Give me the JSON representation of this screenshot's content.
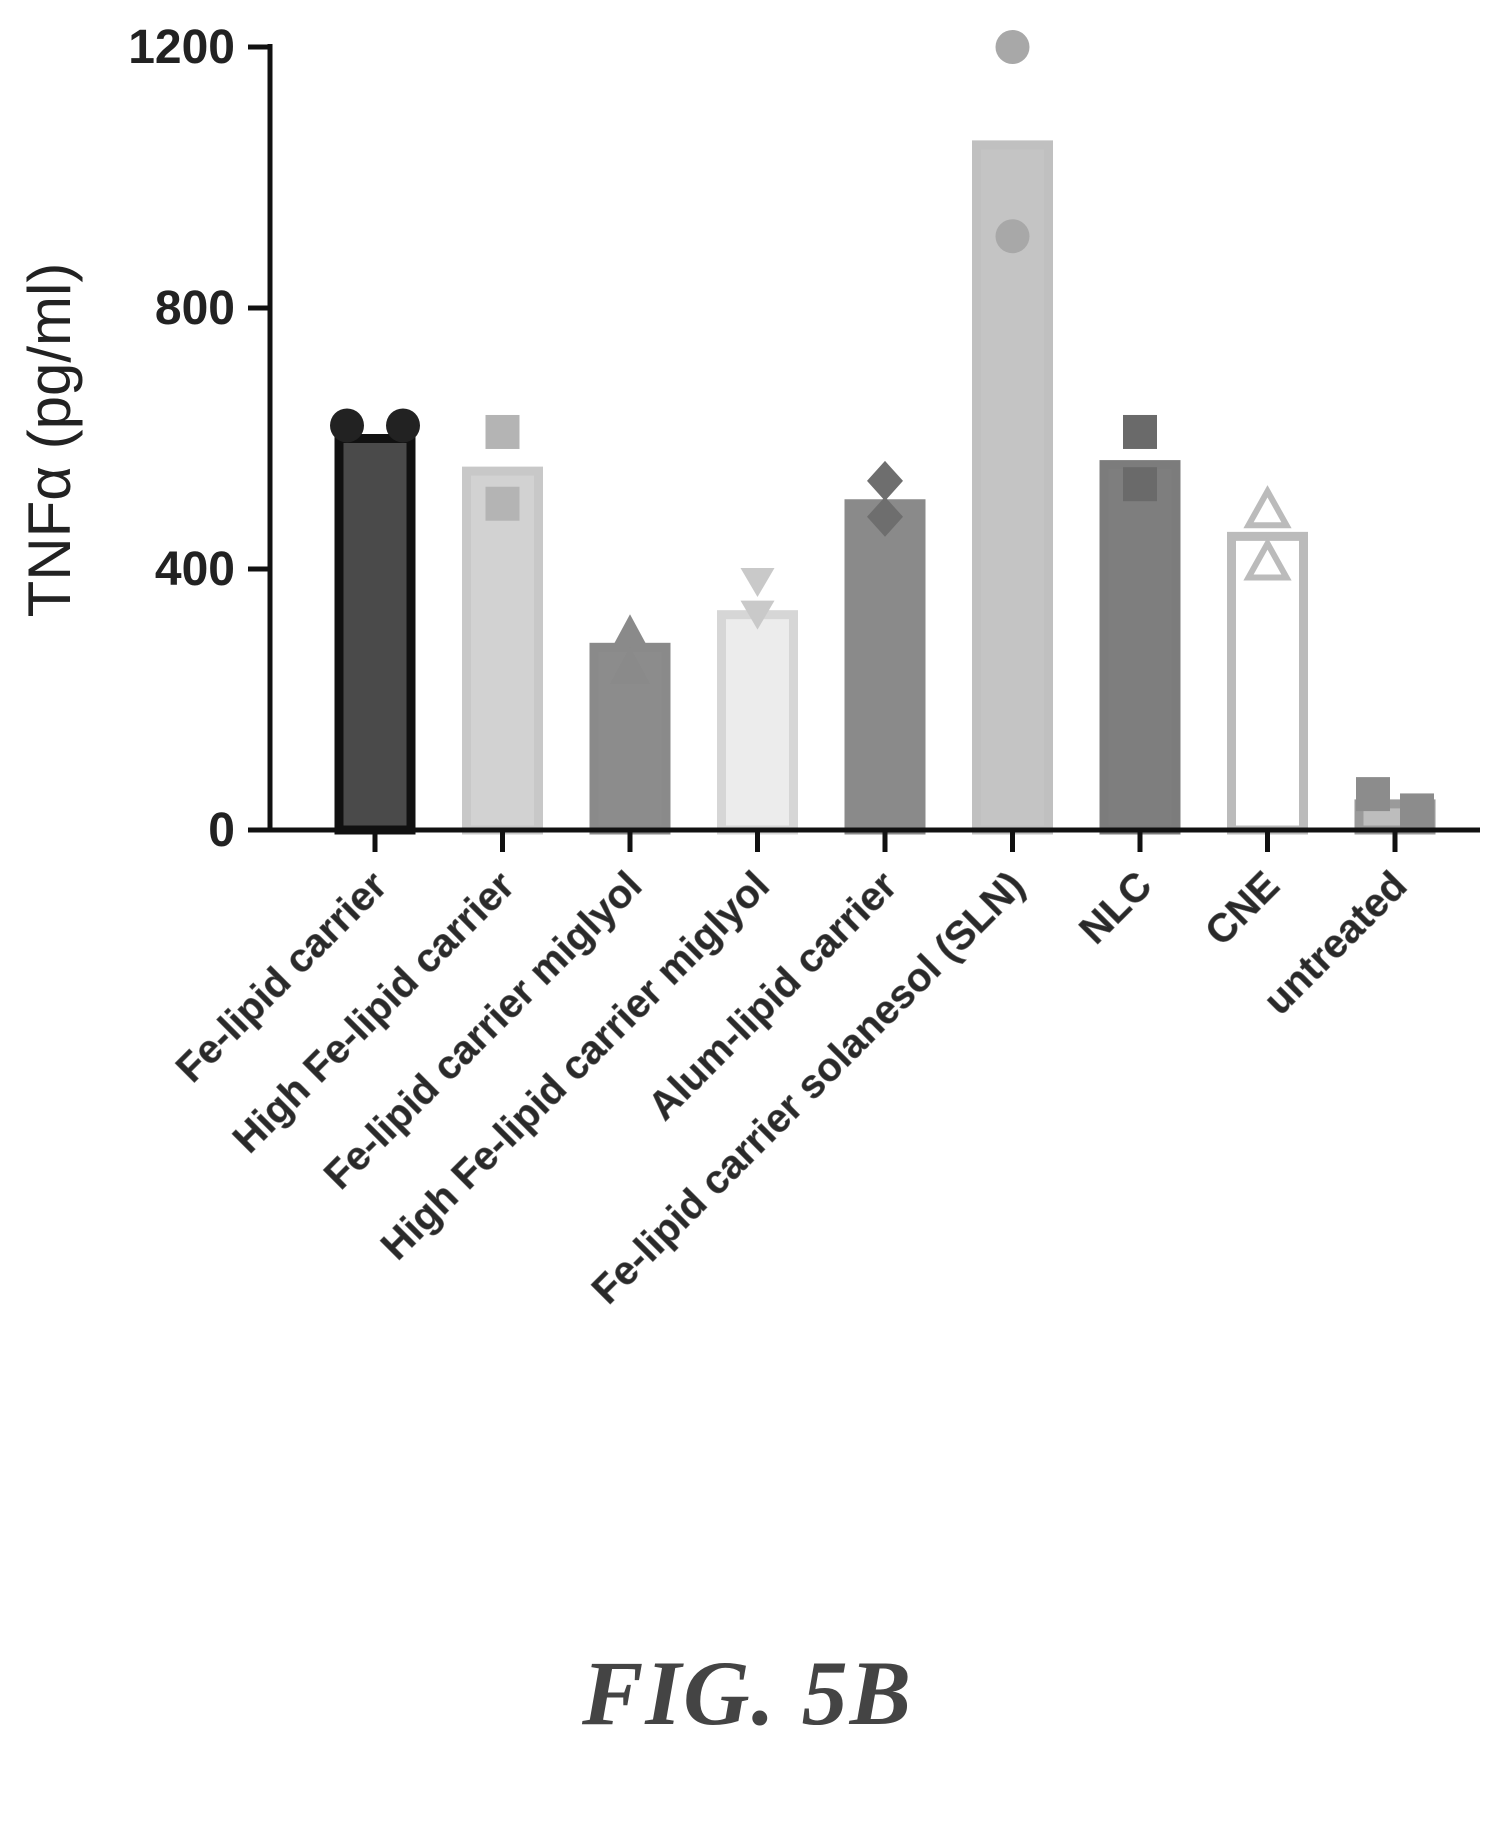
{
  "chart_data": {
    "type": "bar",
    "ylabel": "TNFα (pg/ml)",
    "ylim": [
      0,
      1200
    ],
    "yticks": [
      0,
      400,
      800,
      1200
    ],
    "grid": false,
    "categories": [
      "Fe-lipid carrier",
      "High Fe-lipid carrier",
      "Fe-lipid carrier miglyol",
      "High Fe-lipid carrier miglyol",
      "Alum-lipid carrier",
      "Fe-lipid carrier solanesol (SLN)",
      "NLC",
      "CNE",
      "untreated"
    ],
    "values": [
      600,
      550,
      280,
      330,
      500,
      1050,
      560,
      450,
      40
    ],
    "points": [
      [
        620,
        620
      ],
      [
        610,
        500
      ],
      [
        300,
        250
      ],
      [
        380,
        330
      ],
      [
        535,
        480
      ],
      [
        1200,
        910
      ],
      [
        610,
        530
      ],
      [
        490,
        410
      ],
      [
        55,
        30
      ]
    ],
    "markers": [
      "circle",
      "square",
      "triangle-up",
      "triangle-down",
      "diamond",
      "circle",
      "square",
      "triangle-up-open",
      "square"
    ],
    "bar_fills": [
      "#4a4a4a",
      "#d2d2d2",
      "#8c8c8c",
      "#ececec",
      "#8a8a8a",
      "#c4c4c4",
      "#7e7e7e",
      "#ffffff",
      "#bdbdbd"
    ],
    "bar_strokes": [
      "#111111",
      "#c8c8c8",
      "#8a8a8a",
      "#d6d6d6",
      "#8a8a8a",
      "#c0c0c0",
      "#7c7c7c",
      "#bbbbbb",
      "#9a9a9a"
    ],
    "marker_colors": [
      "#222222",
      "#b4b4b4",
      "#8a8a8a",
      "#c9c9c9",
      "#6e6e6e",
      "#a8a8a8",
      "#6a6a6a",
      "#bbbbbb",
      "#8c8c8c"
    ]
  },
  "figure": {
    "caption": "FIG. 5B"
  }
}
